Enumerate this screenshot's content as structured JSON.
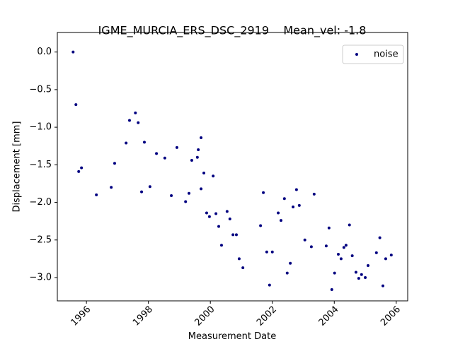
{
  "chart_data": {
    "type": "scatter",
    "title": "IGME_MURCIA_ERS_DSC_2919    Mean_vel: -1.8",
    "x_label": "Measurement Date",
    "y_label": "Displacement [mm]",
    "xlim": [
      1995.06,
      2006.37
    ],
    "ylim": [
      -3.31,
      0.26
    ],
    "xticks": [
      1996,
      1998,
      2000,
      2002,
      2004,
      2006
    ],
    "yticks": [
      {
        "value": 0,
        "label": "0.0"
      },
      {
        "value": -0.5,
        "label": "−0.5"
      },
      {
        "value": -1,
        "label": "−1.0"
      },
      {
        "value": -1.5,
        "label": "−1.5"
      },
      {
        "value": -2,
        "label": "−2.0"
      },
      {
        "value": -2.5,
        "label": "−2.5"
      },
      {
        "value": -3,
        "label": "−3.0"
      }
    ],
    "legend": "upper right",
    "series": [
      {
        "name": "noise",
        "color": "#000080",
        "x": [
          1995.57,
          1995.66,
          1995.75,
          1995.84,
          1996.32,
          1996.8,
          1996.91,
          1997.28,
          1997.39,
          1997.58,
          1997.67,
          1997.78,
          1997.87,
          1998.05,
          1998.26,
          1998.53,
          1998.74,
          1998.92,
          1999.2,
          1999.31,
          1999.4,
          1999.58,
          1999.61,
          1999.7,
          1999.7,
          1999.79,
          1999.88,
          1999.97,
          2000.09,
          2000.18,
          2000.27,
          2000.36,
          2000.54,
          2000.63,
          2000.73,
          2000.84,
          2000.93,
          2001.05,
          2001.62,
          2001.71,
          2001.82,
          2001.91,
          2002.0,
          2002.19,
          2002.28,
          2002.39,
          2002.48,
          2002.58,
          2002.67,
          2002.78,
          2002.87,
          2003.05,
          2003.26,
          2003.35,
          2003.74,
          2003.83,
          2003.92,
          2004.01,
          2004.13,
          2004.22,
          2004.31,
          2004.38,
          2004.49,
          2004.58,
          2004.7,
          2004.79,
          2004.88,
          2005.0,
          2005.09,
          2005.36,
          2005.47,
          2005.57,
          2005.66,
          2005.84
        ],
        "values": [
          0,
          -0.7,
          -1.59,
          -1.54,
          -1.9,
          -1.8,
          -1.48,
          -1.21,
          -0.91,
          -0.81,
          -0.94,
          -1.86,
          -1.2,
          -1.79,
          -1.35,
          -1.41,
          -1.91,
          -1.27,
          -1.99,
          -1.88,
          -1.44,
          -1.4,
          -1.3,
          -1.14,
          -1.82,
          -1.61,
          -2.14,
          -2.19,
          -1.65,
          -2.15,
          -2.32,
          -2.57,
          -2.12,
          -2.22,
          -2.43,
          -2.43,
          -2.75,
          -2.87,
          -2.31,
          -1.87,
          -2.66,
          -3.1,
          -2.66,
          -2.14,
          -2.24,
          -1.95,
          -2.94,
          -2.81,
          -2.06,
          -1.83,
          -2.04,
          -2.5,
          -2.59,
          -1.89,
          -2.58,
          -2.34,
          -3.16,
          -2.94,
          -2.69,
          -2.75,
          -2.6,
          -2.57,
          -2.3,
          -2.71,
          -2.93,
          -3.01,
          -2.96,
          -3.0,
          -2.84,
          -2.67,
          -2.47,
          -3.11,
          -2.75,
          -2.7
        ]
      }
    ]
  }
}
